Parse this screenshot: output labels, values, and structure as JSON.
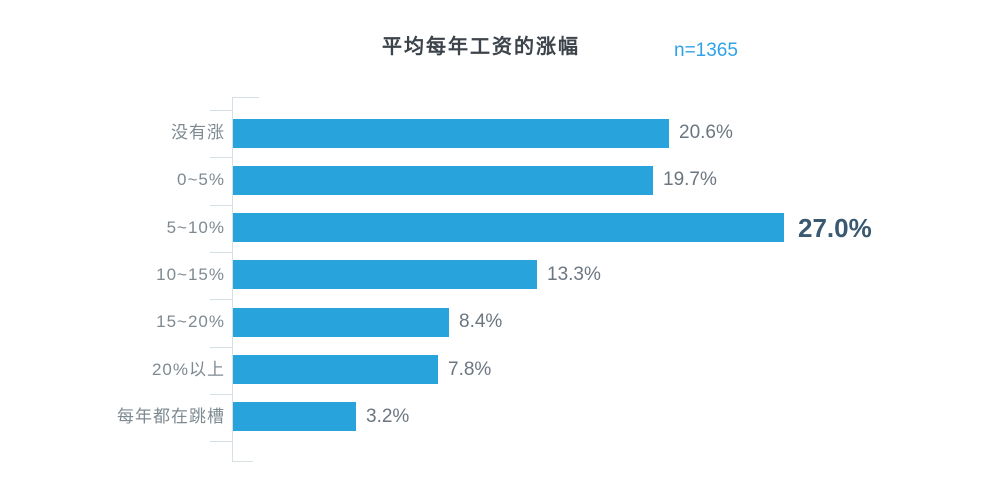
{
  "title": "平均每年工资的涨幅",
  "sample_label": "n=1365",
  "colors": {
    "bar": "#29A3DB",
    "axis": "#D6DFE4",
    "title_text": "#3C434A",
    "sample_text": "#2FA2E9",
    "category_text": "#7E8A92",
    "value_text": "#6C7680",
    "highlight_value_text": "#3A5970"
  },
  "chart_data": {
    "type": "bar",
    "orientation": "horizontal",
    "title": "平均每年工资的涨幅",
    "annotation": "n=1365",
    "categories": [
      "没有涨",
      "0~5%",
      "5~10%",
      "10~15%",
      "15~20%",
      "20%以上",
      "每年都在跳槽"
    ],
    "values": [
      20.6,
      19.7,
      27.0,
      13.3,
      8.4,
      7.8,
      3.2
    ],
    "value_labels": [
      "20.6%",
      "19.7%",
      "27.0%",
      "13.3%",
      "8.4%",
      "7.8%",
      "3.2%"
    ],
    "highlight_index": 2,
    "unit": "%",
    "value_axis_visible": false,
    "grid": false,
    "legend": false
  }
}
